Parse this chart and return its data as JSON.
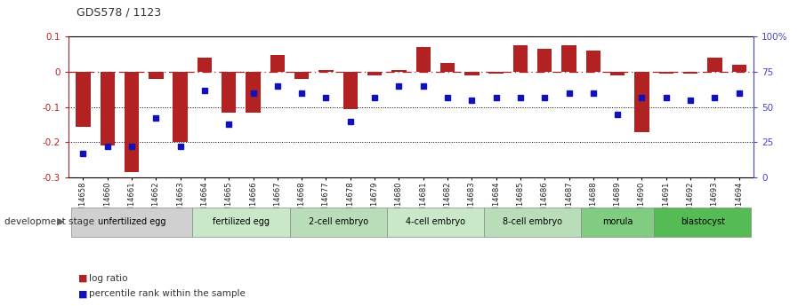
{
  "title": "GDS578 / 1123",
  "samples": [
    "GSM14658",
    "GSM14660",
    "GSM14661",
    "GSM14662",
    "GSM14663",
    "GSM14664",
    "GSM14665",
    "GSM14666",
    "GSM14667",
    "GSM14668",
    "GSM14677",
    "GSM14678",
    "GSM14679",
    "GSM14680",
    "GSM14681",
    "GSM14682",
    "GSM14683",
    "GSM14684",
    "GSM14685",
    "GSM14686",
    "GSM14687",
    "GSM14688",
    "GSM14689",
    "GSM14690",
    "GSM14691",
    "GSM14692",
    "GSM14693",
    "GSM14694"
  ],
  "log_ratio": [
    -0.155,
    -0.21,
    -0.285,
    -0.02,
    -0.2,
    0.04,
    -0.115,
    -0.115,
    0.048,
    -0.02,
    0.005,
    -0.105,
    -0.01,
    0.005,
    0.07,
    0.025,
    -0.01,
    -0.005,
    0.075,
    0.065,
    0.075,
    0.06,
    -0.01,
    -0.17,
    -0.005,
    -0.005,
    0.04,
    0.02
  ],
  "percentile": [
    17,
    22,
    22,
    42,
    22,
    62,
    38,
    60,
    65,
    60,
    57,
    40,
    57,
    65,
    65,
    57,
    55,
    57,
    57,
    57,
    60,
    60,
    45,
    57,
    57,
    55,
    57,
    60
  ],
  "stages": [
    {
      "label": "unfertilized egg",
      "start": 0,
      "end": 5,
      "color": "#d0d0d0"
    },
    {
      "label": "fertilized egg",
      "start": 5,
      "end": 9,
      "color": "#c8e8c8"
    },
    {
      "label": "2-cell embryo",
      "start": 9,
      "end": 13,
      "color": "#b8ddb8"
    },
    {
      "label": "4-cell embryo",
      "start": 13,
      "end": 17,
      "color": "#c8e8c8"
    },
    {
      "label": "8-cell embryo",
      "start": 17,
      "end": 21,
      "color": "#b8ddb8"
    },
    {
      "label": "morula",
      "start": 21,
      "end": 24,
      "color": "#80cc80"
    },
    {
      "label": "blastocyst",
      "start": 24,
      "end": 28,
      "color": "#55bb55"
    }
  ],
  "ylim_left": [
    -0.3,
    0.1
  ],
  "ylim_right": [
    0,
    100
  ],
  "bar_color": "#b22222",
  "dot_color": "#1111bb",
  "bg_color": "#ffffff",
  "zero_line_color": "#b22222",
  "left_axis_color": "#b22222",
  "right_axis_color": "#4444cc",
  "yticks_left": [
    -0.3,
    -0.2,
    -0.1,
    0.0,
    0.1
  ],
  "ytick_labels_left": [
    "-0.3",
    "-0.2",
    "-0.1",
    "0",
    "0.1"
  ],
  "yticks_right": [
    0,
    25,
    50,
    75,
    100
  ],
  "ytick_labels_right": [
    "0",
    "25",
    "50",
    "75",
    "100%"
  ]
}
